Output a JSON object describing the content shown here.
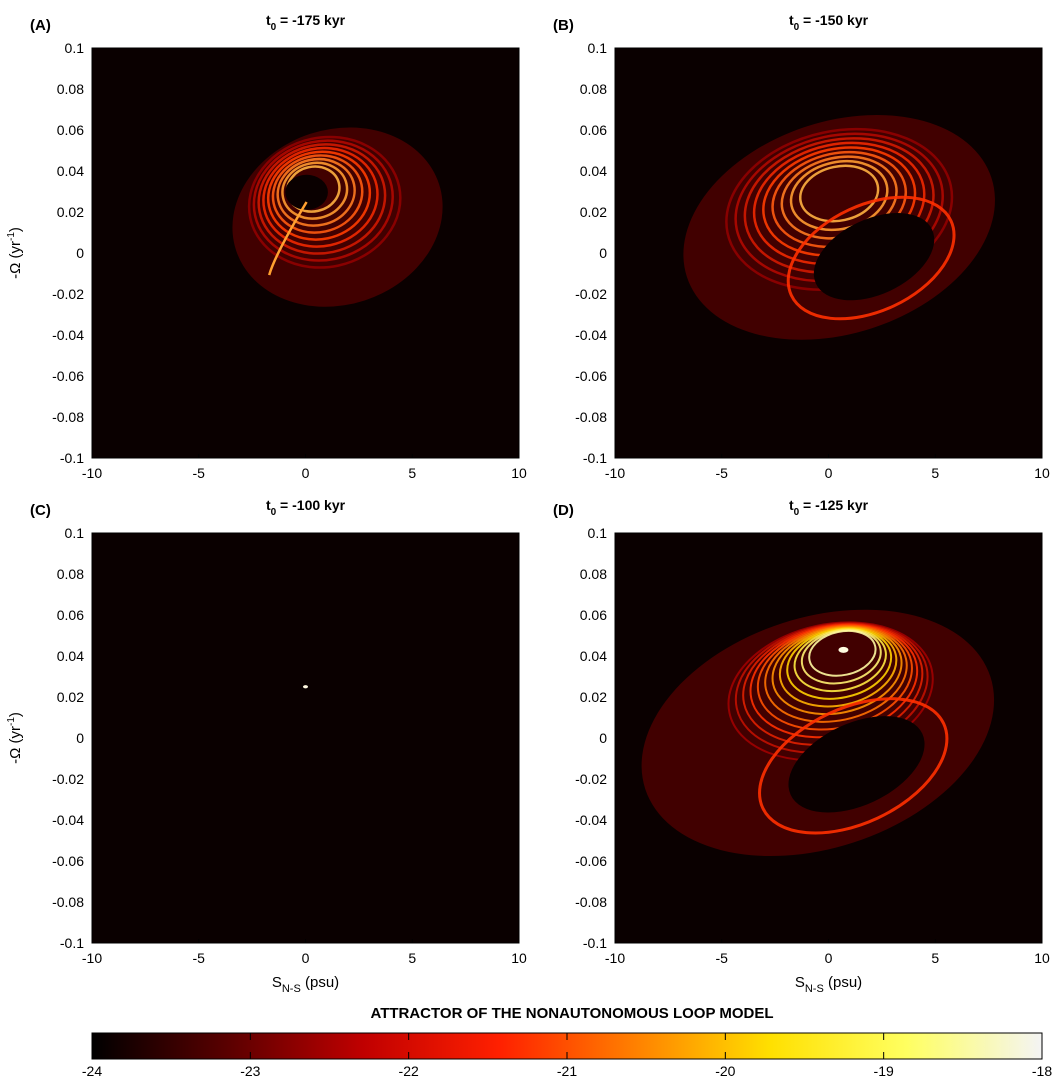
{
  "figure": {
    "colorbar_title": "ATTRACTOR OF THE NONAUTONOMOUS LOOP MODEL",
    "colorbar": {
      "ticks": [
        "-24",
        "-23",
        "-22",
        "-21",
        "-20",
        "-19",
        "-18"
      ],
      "min": -24,
      "max": -18,
      "colormap": [
        "#000000",
        "#5a0000",
        "#c00000",
        "#ff2000",
        "#ff8000",
        "#ffe000",
        "#ffff60",
        "#f4f4f4"
      ]
    },
    "background_color": "#0a0000"
  },
  "chart_data": [
    {
      "type": "heatmap",
      "panel_label": "(A)",
      "title_prefix": "t",
      "title_sub": "0",
      "title_suffix": " = -175 kyr",
      "xlabel_main": "",
      "xlabel_sub": "",
      "xlabel_unit": "",
      "ylabel": "-Ω (yr",
      "ylabel_sup": "-1",
      "ylabel_close": ")",
      "xlim": [
        -10,
        10
      ],
      "ylim": [
        -0.1,
        0.1
      ],
      "xticks": [
        "-10",
        "-5",
        "0",
        "5",
        "10"
      ],
      "yticks": [
        "0.1",
        "0.08",
        "0.06",
        "0.04",
        "0.02",
        "0",
        "-0.02",
        "-0.04",
        "-0.06",
        "-0.08",
        "-0.1"
      ],
      "attractor": "chaotic-compact",
      "center": [
        0.3,
        0.032
      ],
      "extent_x": [
        -3.5,
        6.5
      ],
      "extent_y": [
        -0.03,
        0.065
      ]
    },
    {
      "type": "heatmap",
      "panel_label": "(B)",
      "title_prefix": "t",
      "title_sub": "0",
      "title_suffix": " = -150 kyr",
      "xlabel_main": "",
      "xlabel_sub": "",
      "xlabel_unit": "",
      "ylabel": "",
      "ylabel_sup": "",
      "ylabel_close": "",
      "xlim": [
        -10,
        10
      ],
      "ylim": [
        -0.1,
        0.1
      ],
      "xticks": [
        "-10",
        "-5",
        "0",
        "5",
        "10"
      ],
      "yticks": [
        "0.1",
        "0.08",
        "0.06",
        "0.04",
        "0.02",
        "0",
        "-0.02",
        "-0.04",
        "-0.06",
        "-0.08",
        "-0.1"
      ],
      "attractor": "chaotic-large",
      "center": [
        0.5,
        0.03
      ],
      "extent_x": [
        -7,
        8
      ],
      "extent_y": [
        -0.045,
        0.07
      ]
    },
    {
      "type": "heatmap",
      "panel_label": "(C)",
      "title_prefix": "t",
      "title_sub": "0",
      "title_suffix": " = -100 kyr",
      "xlabel_main": "S",
      "xlabel_sub": "N-S",
      "xlabel_unit": " (psu)",
      "ylabel": "-Ω (yr",
      "ylabel_sup": "-1",
      "ylabel_close": ")",
      "xlim": [
        -10,
        10
      ],
      "ylim": [
        -0.1,
        0.1
      ],
      "xticks": [
        "-10",
        "-5",
        "0",
        "5",
        "10"
      ],
      "yticks": [
        "0.1",
        "0.08",
        "0.06",
        "0.04",
        "0.02",
        "0",
        "-0.02",
        "-0.04",
        "-0.06",
        "-0.08",
        "-0.1"
      ],
      "attractor": "fixed-point",
      "center": [
        0.0,
        0.025
      ],
      "extent_x": [
        -0.1,
        0.1
      ],
      "extent_y": [
        0.024,
        0.026
      ]
    },
    {
      "type": "heatmap",
      "panel_label": "(D)",
      "title_prefix": "t",
      "title_sub": "0",
      "title_suffix": " = -125 kyr",
      "xlabel_main": "S",
      "xlabel_sub": "N-S",
      "xlabel_unit": " (psu)",
      "ylabel": "",
      "ylabel_sup": "",
      "ylabel_close": "",
      "xlim": [
        -10,
        10
      ],
      "ylim": [
        -0.1,
        0.1
      ],
      "xticks": [
        "-10",
        "-5",
        "0",
        "5",
        "10"
      ],
      "yticks": [
        "0.1",
        "0.08",
        "0.06",
        "0.04",
        "0.02",
        "0",
        "-0.02",
        "-0.04",
        "-0.06",
        "-0.08",
        "-0.1"
      ],
      "attractor": "spiral-focus",
      "center": [
        0.7,
        0.043
      ],
      "extent_x": [
        -9,
        8
      ],
      "extent_y": [
        -0.06,
        0.065
      ]
    }
  ]
}
